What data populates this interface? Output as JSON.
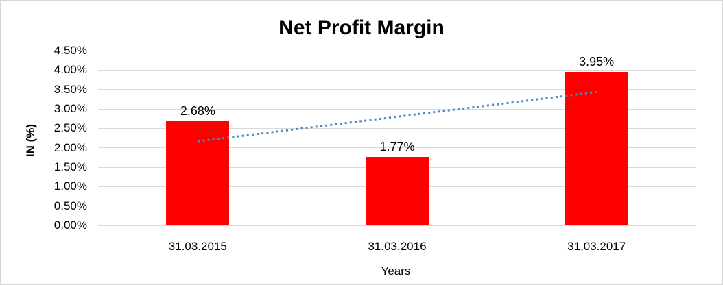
{
  "window": {
    "background": "#ffffff",
    "border_color": "#d5d5d5"
  },
  "chart_data": {
    "type": "bar",
    "title": "Net Profit Margin",
    "xlabel": "Years",
    "ylabel": "IN (%)",
    "categories": [
      "31.03.2015",
      "31.03.2016",
      "31.03.2017"
    ],
    "values": [
      2.68,
      1.77,
      3.95
    ],
    "value_labels": [
      "2.68%",
      "1.77%",
      "3.95%"
    ],
    "ylim": [
      0,
      4.5
    ],
    "ytick_step": 0.5,
    "ytick_labels": [
      "0.00%",
      "0.50%",
      "1.00%",
      "1.50%",
      "2.00%",
      "2.50%",
      "3.00%",
      "3.50%",
      "4.00%",
      "4.50%"
    ],
    "grid": true,
    "legend": "none",
    "bar_color": "#ff0000",
    "gridline_color": "#d9d9d9",
    "text_color": "#000000",
    "trendline": {
      "type": "linear",
      "style": "dotted",
      "color": "#4a89c9",
      "start_value": 2.165,
      "end_value": 3.435
    }
  }
}
